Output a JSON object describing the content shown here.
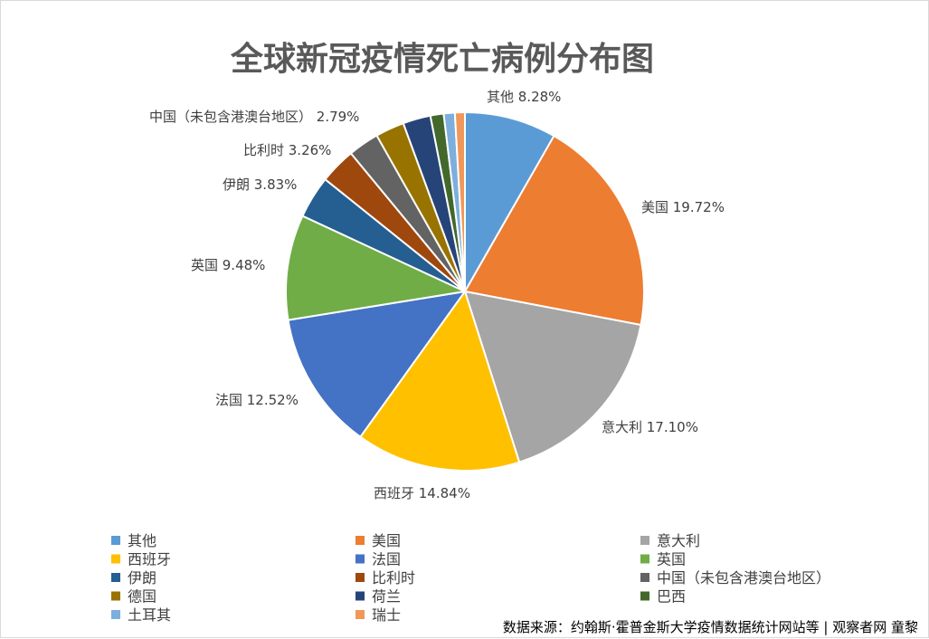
{
  "chart_data": {
    "type": "pie",
    "title": "全球新冠疫情死亡病例分布图",
    "source": "数据来源：约翰斯·霍普金斯大学疫情数据统计网站等 | 观察者网 童黎",
    "legend_position": "bottom",
    "slices": [
      {
        "name": "其他",
        "value": 8.28,
        "label": "其他 8.28%",
        "color": "#5B9BD5"
      },
      {
        "name": "美国",
        "value": 19.72,
        "label": "美国 19.72%",
        "color": "#ED7D31"
      },
      {
        "name": "意大利",
        "value": 17.1,
        "label": "意大利 17.10%",
        "color": "#A5A5A5"
      },
      {
        "name": "西班牙",
        "value": 14.84,
        "label": "西班牙 14.84%",
        "color": "#FFC000"
      },
      {
        "name": "法国",
        "value": 12.52,
        "label": "法国 12.52%",
        "color": "#4472C4"
      },
      {
        "name": "英国",
        "value": 9.48,
        "label": "英国 9.48%",
        "color": "#70AD47"
      },
      {
        "name": "伊朗",
        "value": 3.83,
        "label": "伊朗 3.83%",
        "color": "#255E91"
      },
      {
        "name": "比利时",
        "value": 3.26,
        "label": "比利时 3.26%",
        "color": "#9E480E"
      },
      {
        "name": "中国（未包含港澳台地区）",
        "value": 2.79,
        "label": "中国（未包含港澳台地区） 2.79%",
        "color": "#636363"
      },
      {
        "name": "德国",
        "value": 2.6,
        "label": "",
        "color": "#997300"
      },
      {
        "name": "荷兰",
        "value": 2.5,
        "label": "",
        "color": "#264478"
      },
      {
        "name": "巴西",
        "value": 1.2,
        "label": "",
        "color": "#43682B"
      },
      {
        "name": "土耳其",
        "value": 1.0,
        "label": "",
        "color": "#7CAFDD"
      },
      {
        "name": "瑞士",
        "value": 0.9,
        "label": "",
        "color": "#F1975A"
      }
    ]
  }
}
